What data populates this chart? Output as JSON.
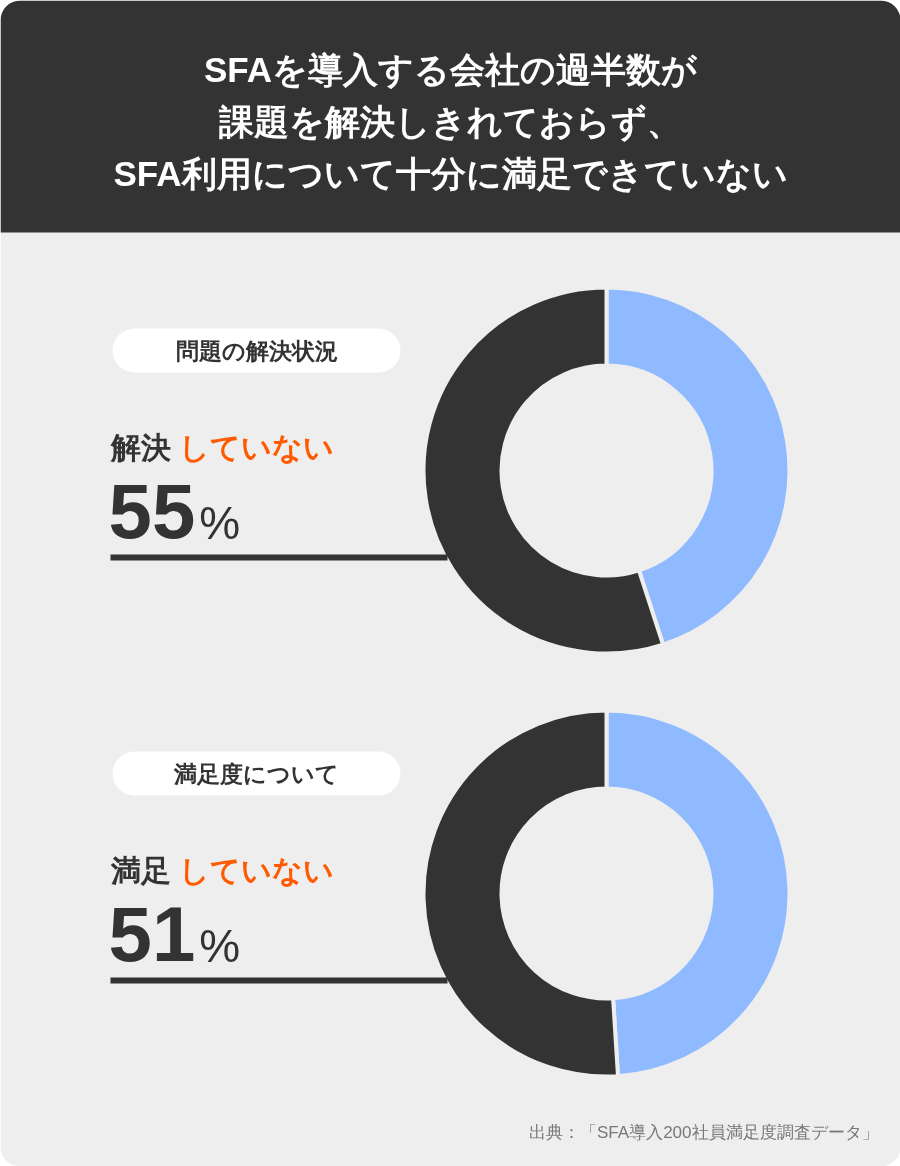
{
  "chart_data": [
    {
      "type": "other",
      "title": "SFAを導入する会社の過半数が課題を解決しきれておらず、SFA利用について十分に満足できていない"
    },
    {
      "type": "donut",
      "title": "問題の解決状況",
      "categories": [
        null,
        "解決していない"
      ],
      "values": [
        45,
        55
      ],
      "colors": [
        "#8fbaff",
        "#333333"
      ],
      "value_labels": [
        null,
        "55%"
      ]
    },
    {
      "type": "donut",
      "title": "満足度について",
      "categories": [
        null,
        "満足していない"
      ],
      "values": [
        49,
        51
      ],
      "colors": [
        "#8fbaff",
        "#333333"
      ],
      "value_labels": [
        null,
        "51%"
      ],
      "annotations": [
        "出典：「SFA導入200社員満足度調査データ」"
      ]
    }
  ]
}
